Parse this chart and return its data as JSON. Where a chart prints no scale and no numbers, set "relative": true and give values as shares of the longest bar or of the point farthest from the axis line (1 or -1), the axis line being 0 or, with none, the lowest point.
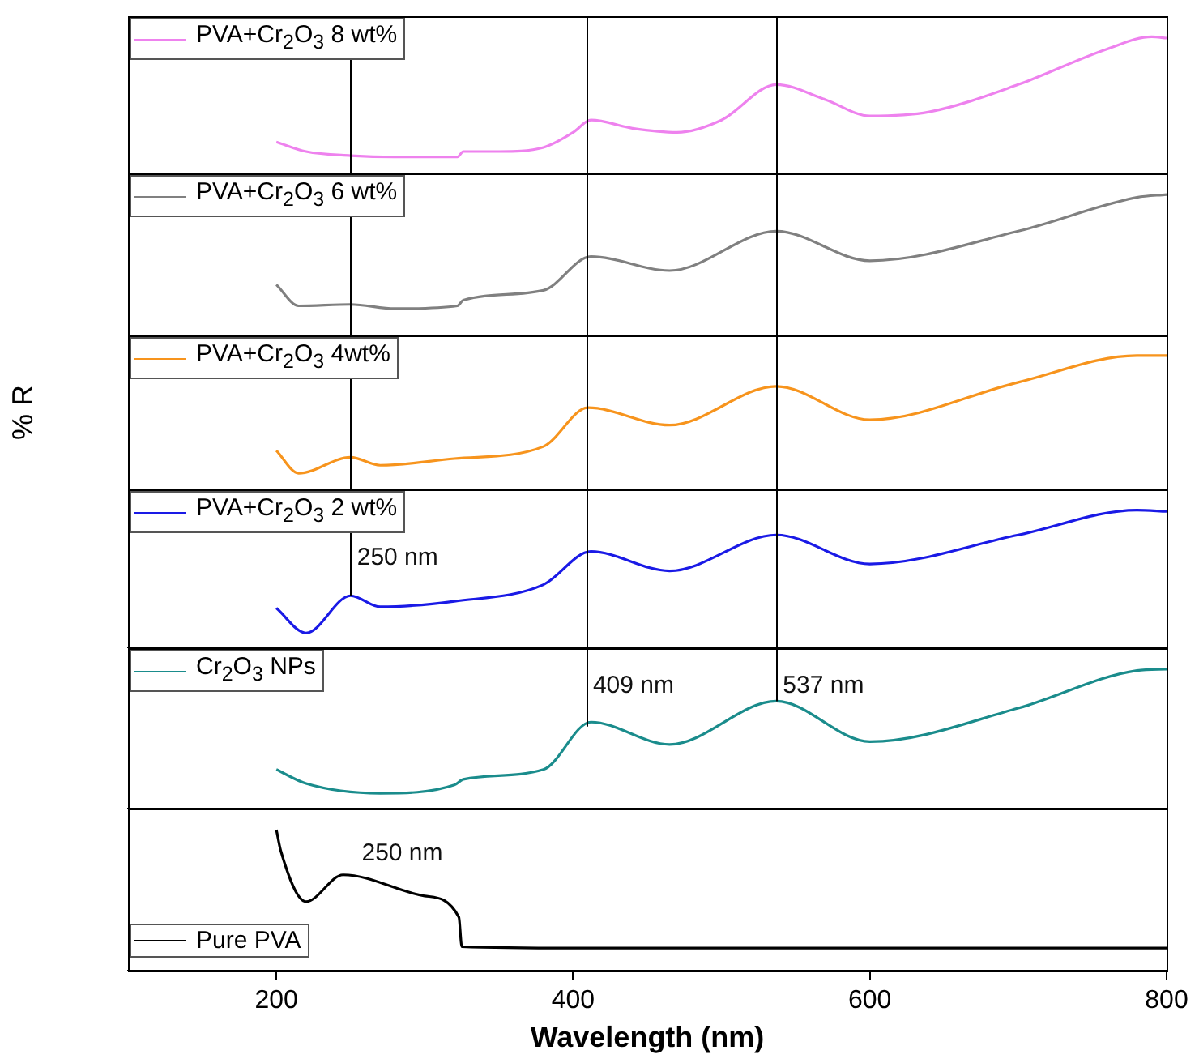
{
  "chart_data": [
    {
      "type": "line",
      "x": [
        200,
        220,
        250,
        280,
        322,
        326,
        350,
        380,
        400,
        412,
        440,
        470,
        500,
        537,
        570,
        600,
        640,
        700,
        760,
        790,
        800
      ],
      "series": [
        {
          "name": "PVA+Cr$_{2}$O$_{3}$ 8 wt%",
          "color": "#ee82ee",
          "values": [
            0.23,
            0.16,
            0.13,
            0.12,
            0.12,
            0.16,
            0.16,
            0.19,
            0.3,
            0.39,
            0.33,
            0.3,
            0.39,
            0.65,
            0.54,
            0.42,
            0.45,
            0.65,
            0.91,
            1,
            0.99
          ]
        }
      ],
      "xlim": [
        100,
        800
      ],
      "xticks": [
        200,
        400,
        600,
        800
      ],
      "relative": true,
      "marker": "none",
      "legend": "top left",
      "tick_labels": false,
      "ref_lines": [
        {
          "axis": "x",
          "value": 250
        },
        {
          "axis": "x",
          "value": 409
        },
        {
          "axis": "x",
          "value": 537
        }
      ]
    },
    {
      "type": "line",
      "x": [
        200,
        215,
        250,
        280,
        322,
        326,
        380,
        412,
        465,
        537,
        600,
        700,
        780,
        800
      ],
      "series": [
        {
          "name": "PVA+Cr$_{2}$O$_{3}$ 6 wt%",
          "color": "#808080",
          "values": [
            0.36,
            0.21,
            0.22,
            0.19,
            0.21,
            0.25,
            0.32,
            0.56,
            0.46,
            0.74,
            0.53,
            0.74,
            0.98,
            1
          ]
        }
      ],
      "xlim": [
        100,
        800
      ],
      "xticks": [
        200,
        400,
        600,
        800
      ],
      "relative": true,
      "marker": "none",
      "legend": "top left",
      "tick_labels": false,
      "ref_lines": [
        {
          "axis": "x",
          "value": 250
        },
        {
          "axis": "x",
          "value": 409
        },
        {
          "axis": "x",
          "value": 537
        }
      ]
    },
    {
      "type": "line",
      "x": [
        200,
        215,
        250,
        270,
        320,
        380,
        410,
        465,
        537,
        600,
        700,
        780,
        800
      ],
      "series": [
        {
          "name": "PVA+Cr$_{2}$O$_{3}$ 4wt%",
          "color": "#f7941d",
          "values": [
            0.29,
            0.12,
            0.24,
            0.18,
            0.23,
            0.32,
            0.61,
            0.48,
            0.77,
            0.52,
            0.8,
            1,
            1
          ]
        }
      ],
      "xlim": [
        100,
        800
      ],
      "xticks": [
        200,
        400,
        600,
        800
      ],
      "relative": true,
      "marker": "none",
      "legend": "top left",
      "tick_labels": false,
      "ylabel": "% R",
      "ref_lines": [
        {
          "axis": "x",
          "value": 250
        },
        {
          "axis": "x",
          "value": 409
        },
        {
          "axis": "x",
          "value": 537
        }
      ]
    },
    {
      "type": "line",
      "x": [
        200,
        220,
        250,
        270,
        320,
        380,
        412,
        465,
        537,
        600,
        700,
        780,
        800
      ],
      "series": [
        {
          "name": "PVA+Cr$_{2}$O$_{3}$ 2 wt%",
          "color": "#1a1ae6",
          "values": [
            0.29,
            0.11,
            0.38,
            0.3,
            0.34,
            0.46,
            0.7,
            0.56,
            0.82,
            0.61,
            0.82,
            1,
            0.99
          ]
        }
      ],
      "xlim": [
        100,
        800
      ],
      "xticks": [
        200,
        400,
        600,
        800
      ],
      "relative": true,
      "marker": "none",
      "legend": "top left",
      "tick_labels": false,
      "ref_lines": [
        {
          "axis": "x",
          "value": 250
        },
        {
          "axis": "x",
          "value": 409
        },
        {
          "axis": "x",
          "value": 537
        }
      ],
      "annotations": [
        {
          "text": "250 nm",
          "x": 250,
          "y": 0.65
        }
      ]
    },
    {
      "type": "line",
      "x": [
        200,
        220,
        270,
        320,
        326,
        380,
        412,
        465,
        537,
        600,
        700,
        780,
        800
      ],
      "series": [
        {
          "name": "Cr$_{2}$O$_{3}$ NPs",
          "color": "#1a8c8c",
          "values": [
            0.28,
            0.18,
            0.11,
            0.17,
            0.21,
            0.28,
            0.62,
            0.46,
            0.77,
            0.48,
            0.72,
            0.99,
            1
          ]
        }
      ],
      "xlim": [
        100,
        800
      ],
      "xticks": [
        200,
        400,
        600,
        800
      ],
      "relative": true,
      "marker": "none",
      "legend": "top left",
      "tick_labels": false,
      "ref_lines": [
        {
          "axis": "x",
          "value": 409
        },
        {
          "axis": "x",
          "value": 537
        }
      ],
      "annotations": [
        {
          "text": "409 nm",
          "x": 409,
          "y": 0.88
        },
        {
          "text": "537 nm",
          "x": 537,
          "y": 0.88
        }
      ]
    },
    {
      "type": "line",
      "x": [
        200,
        203,
        220,
        245,
        300,
        323,
        325,
        400,
        800
      ],
      "series": [
        {
          "name": "Pure PVA",
          "color": "#000000",
          "values": [
            1,
            0.85,
            0.49,
            0.68,
            0.53,
            0.38,
            0.17,
            0.16,
            0.16
          ]
        }
      ],
      "xlim": [
        100,
        800
      ],
      "xticks": [
        200,
        400,
        600,
        800
      ],
      "relative": true,
      "marker": "none",
      "legend": "bottom left",
      "tick_labels": "x",
      "xlabel": "Wavelength (nm)",
      "annotations": [
        "250 nm"
      ]
    }
  ]
}
